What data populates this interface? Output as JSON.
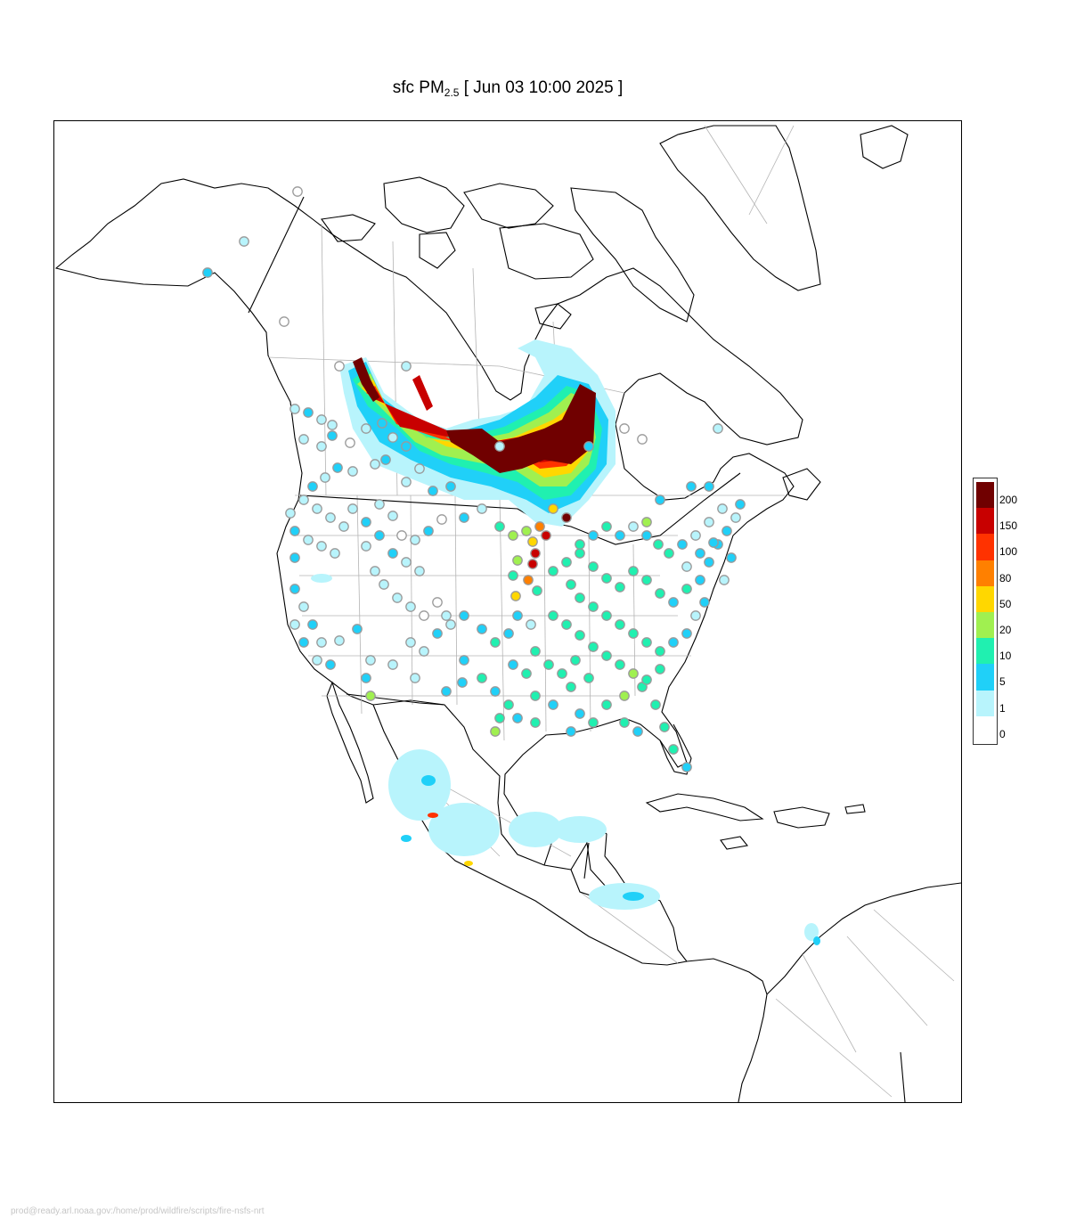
{
  "title": {
    "prefix": "sfc PM",
    "subscript": "2.5",
    "suffix": " [ Jun 03 10:00 2025 ]"
  },
  "legend": {
    "labels": [
      "200",
      "150",
      "100",
      "80",
      "50",
      "20",
      "10",
      "5",
      "1",
      "0"
    ],
    "colors": [
      "#700000",
      "#c80000",
      "#ff3200",
      "#ff8000",
      "#ffd700",
      "#a0f050",
      "#20f0b0",
      "#20d0f8",
      "#b8f4fc",
      "#ffffff"
    ]
  },
  "colors": {
    "land_outline": "#000000",
    "state_border": "#b4b4b4",
    "station_outline": "#9a9a9a"
  },
  "footer": "prod@ready.arl.noaa.gov:/home/prod/wildfire/scripts/fire-nsfs-nrt"
}
